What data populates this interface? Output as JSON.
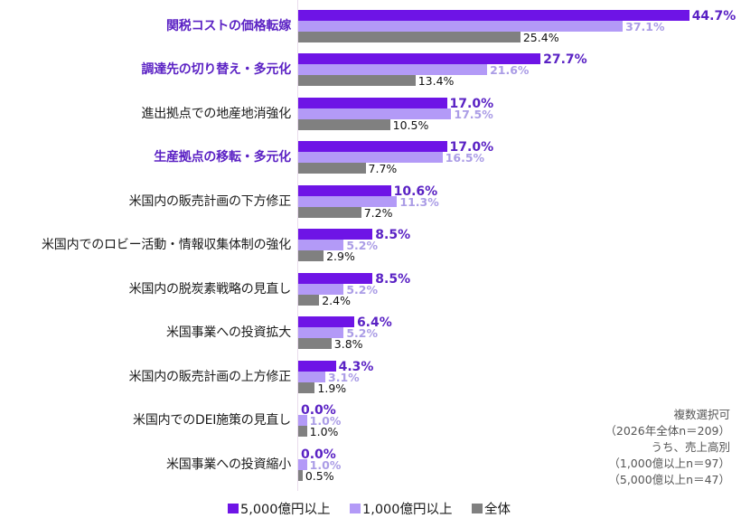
{
  "chart_data": {
    "type": "bar",
    "orientation": "horizontal",
    "title": "",
    "xlabel": "",
    "ylabel": "",
    "unit": "%",
    "xlim": [
      0,
      50
    ],
    "grid": false,
    "legend_position": "bottom",
    "categories": [
      "関税コストの価格転嫁",
      "調達先の切り替え・多元化",
      "進出拠点での地産地消強化",
      "生産拠点の移転・多元化",
      "米国内の販売計画の下方修正",
      "米国内でのロビー活動・情報収集体制の強化",
      "米国内の脱炭素戦略の見直し",
      "米国事業への投資拡大",
      "米国内の販売計画の上方修正",
      "米国内でのDEI施策の見直し",
      "米国事業への投資縮小"
    ],
    "highlighted": [
      true,
      true,
      false,
      true,
      false,
      false,
      false,
      false,
      false,
      false,
      false
    ],
    "highlight_color": "#5b22c4",
    "series": [
      {
        "name": "5,000億円以上",
        "color": "#6e14e6",
        "values": [
          44.7,
          27.7,
          17.0,
          17.0,
          10.6,
          8.5,
          8.5,
          6.4,
          4.3,
          0.0,
          0.0
        ],
        "labels": [
          "44.7%",
          "27.7%",
          "17.0%",
          "17.0%",
          "10.6%",
          "8.5%",
          "8.5%",
          "6.4%",
          "4.3%",
          "0.0%",
          "0.0%"
        ]
      },
      {
        "name": "1,000億円以上",
        "color": "#b39af7",
        "values": [
          37.1,
          21.6,
          17.5,
          16.5,
          11.3,
          5.2,
          5.2,
          5.2,
          3.1,
          1.0,
          1.0
        ],
        "labels": [
          "37.1%",
          "21.6%",
          "17.5%",
          "16.5%",
          "11.3%",
          "5.2%",
          "5.2%",
          "5.2%",
          "3.1%",
          "1.0%",
          "1.0%"
        ]
      },
      {
        "name": "全体",
        "color": "#808080",
        "values": [
          25.4,
          13.4,
          10.5,
          7.7,
          7.2,
          2.9,
          2.4,
          3.8,
          1.9,
          1.0,
          0.5
        ],
        "labels": [
          "25.4%",
          "13.4%",
          "10.5%",
          "7.7%",
          "7.2%",
          "2.9%",
          "2.4%",
          "3.8%",
          "1.9%",
          "1.0%",
          "0.5%"
        ]
      }
    ],
    "annotations": [
      "複数選択可",
      "（2026年全体n＝209）",
      "うち、売上高別",
      "（1,000億以上n＝97）",
      "（5,000億以上n＝47）"
    ]
  },
  "legend": {
    "items": [
      {
        "label": "5,000億円以上",
        "color": "#6e14e6"
      },
      {
        "label": "1,000億円以上",
        "color": "#b39af7"
      },
      {
        "label": "全体",
        "color": "#808080"
      }
    ]
  }
}
